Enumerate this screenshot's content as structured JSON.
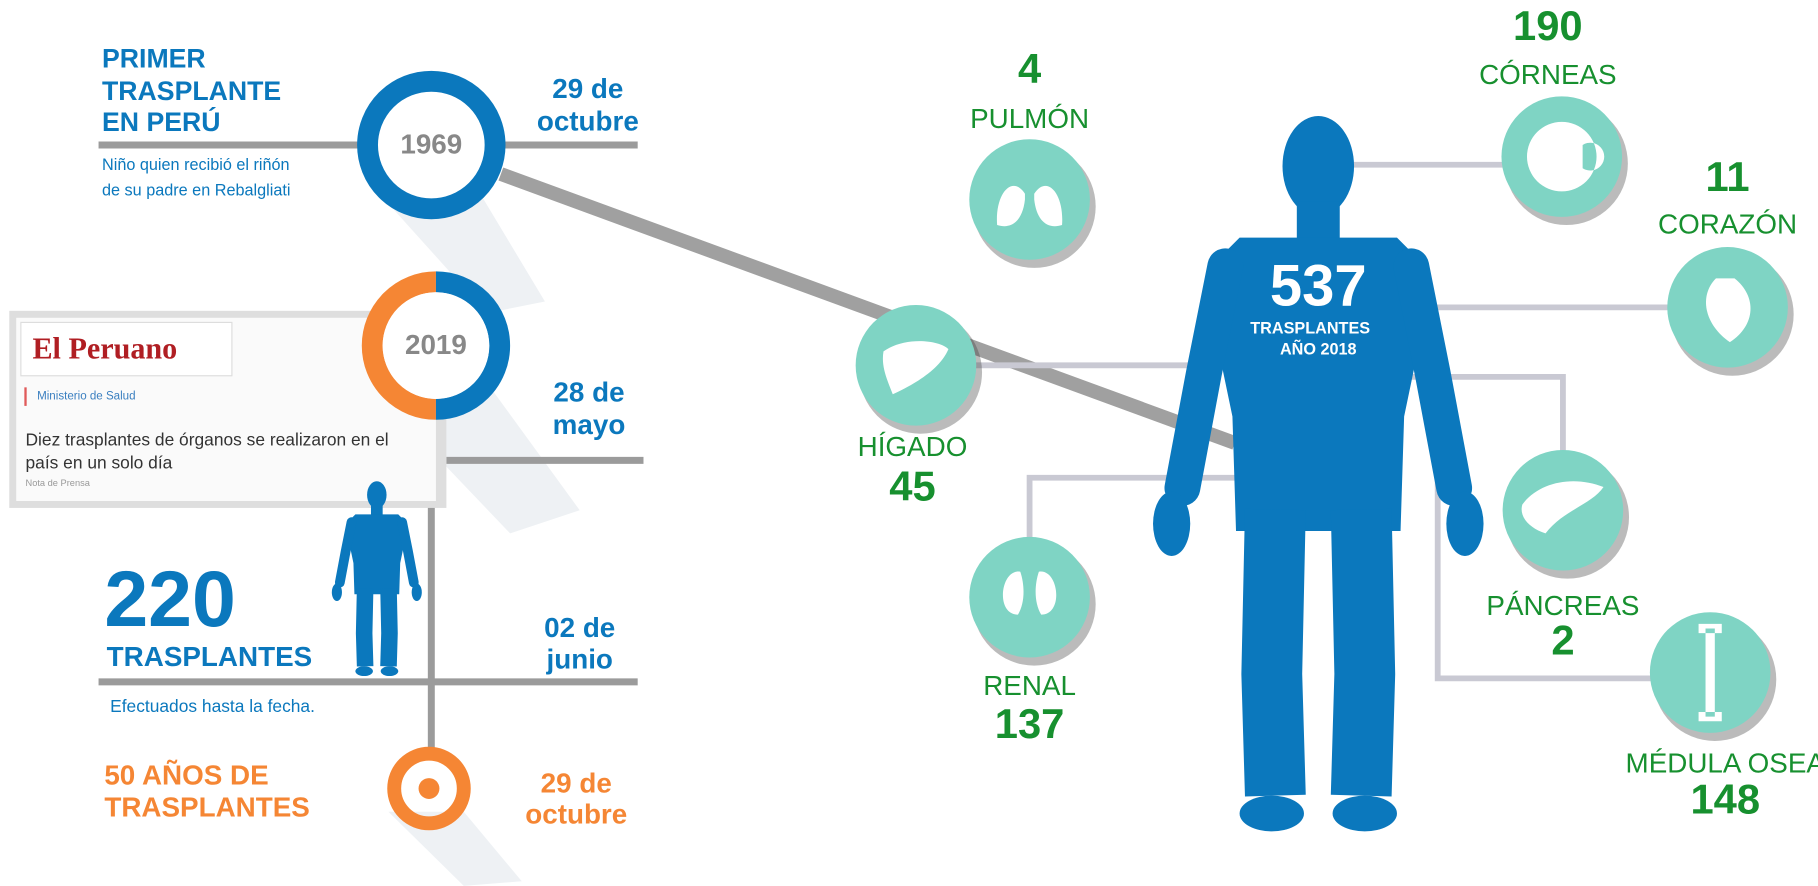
{
  "timeline": [
    {
      "title_lines": [
        "PRIMER",
        "TRASPLANTE",
        "EN PERÚ"
      ],
      "note_lines": [
        "Niño quien recibió el riñón",
        "de su padre en Rebalgliati"
      ],
      "year": "1969",
      "date_lines": [
        "29 de",
        "octubre"
      ]
    },
    {
      "year": "2019",
      "date_lines": [
        "28 de",
        "mayo"
      ],
      "clipping": {
        "masthead": "El Peruano",
        "section": "Ministerio de Salud",
        "headline_lines": [
          "Diez trasplantes de órganos se realizaron en el",
          "país en un solo día"
        ],
        "kicker": "Nota de Prensa"
      }
    },
    {
      "count": 220,
      "label": "TRASPLANTES",
      "note": "Efectuados hasta la fecha.",
      "date_lines": [
        "02 de",
        "junio"
      ]
    },
    {
      "title_lines": [
        "50 AÑOS DE",
        "TRASPLANTES"
      ],
      "date_lines": [
        "29 de",
        "octubre"
      ]
    }
  ],
  "body": {
    "total": 537,
    "label_lines": [
      "TRASPLANTES",
      "AÑO 2018"
    ]
  },
  "organs": [
    {
      "name": "PULMÓN",
      "count": 4
    },
    {
      "name": "CÓRNEAS",
      "count": 190
    },
    {
      "name": "CORAZÓN",
      "count": 11
    },
    {
      "name": "HÍGADO",
      "count": 45
    },
    {
      "name": "PÁNCREAS",
      "count": 2
    },
    {
      "name": "MÉDULA OSEA",
      "count": 148
    },
    {
      "name": "RENAL",
      "count": 137
    }
  ]
}
